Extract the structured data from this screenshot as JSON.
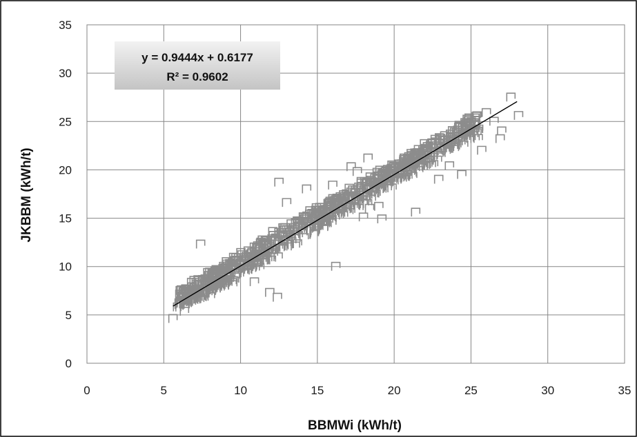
{
  "chart_data": {
    "type": "scatter",
    "xlabel": "BBMWi (kWh/t)",
    "ylabel": "JKBBM (kWh/t)",
    "xlim": [
      0,
      35
    ],
    "ylim": [
      0,
      35
    ],
    "xticks": [
      "0",
      "5",
      "10",
      "15",
      "20",
      "25",
      "30",
      "35"
    ],
    "yticks": [
      "0",
      "5",
      "10",
      "15",
      "20",
      "25",
      "30",
      "35"
    ],
    "grid": true,
    "marker": "open-square-diamond",
    "marker_color": "#8c8c8c",
    "trendline": {
      "slope": 0.9444,
      "intercept": 0.6177,
      "x_range": [
        5.6,
        28.0
      ],
      "color": "#000000"
    },
    "annotation": {
      "equation": "y = 0.9444x + 0.6177",
      "r_squared": "R² = 0.9602"
    },
    "series": [
      {
        "values_note_free": true,
        "x": [
          5.6,
          5.9,
          6.1,
          6.3,
          6.5,
          6.7,
          6.9,
          7.1,
          7.3,
          7.5,
          7.7,
          7.9,
          8.1,
          8.3,
          8.5,
          8.7,
          8.9,
          9.1,
          9.3,
          9.5,
          9.7,
          9.9,
          10.1,
          10.3,
          10.5,
          10.7,
          10.9,
          11.1,
          11.3,
          11.5,
          11.7,
          11.9,
          12.1,
          12.3,
          12.5,
          12.7,
          12.9,
          13.1,
          13.3,
          13.5,
          13.7,
          13.9,
          14.1,
          14.3,
          14.5,
          14.7,
          14.9,
          15.1,
          15.3,
          15.5,
          15.7,
          15.9,
          16.1,
          16.3,
          16.5,
          16.7,
          16.9,
          17.1,
          17.3,
          17.5,
          17.7,
          17.9,
          18.1,
          18.3,
          18.5,
          18.7,
          18.9,
          19.1,
          19.3,
          19.5,
          19.7,
          19.9,
          20.1,
          20.3,
          20.5,
          20.7,
          20.9,
          21.1,
          21.3,
          21.5,
          21.7,
          21.9,
          22.1,
          22.3,
          22.5,
          22.7,
          22.9,
          23.1,
          23.3,
          23.5,
          23.7,
          23.9,
          24.1,
          24.3,
          24.5,
          24.7,
          24.9,
          25.1,
          25.3,
          25.5,
          26.0,
          26.5,
          27.0,
          27.6,
          28.1,
          7.4,
          8.2,
          11.9,
          12.1,
          12.4,
          16.2,
          17.6,
          18.0,
          18.4,
          19.2,
          21.4,
          22.9,
          23.6,
          24.4,
          25.7,
          26.9,
          14.3,
          16.0,
          17.2,
          18.3,
          19.0,
          13.0,
          12.5,
          10.9,
          9.6,
          8.7
        ],
        "y": [
          4.6,
          5.8,
          6.4,
          6.1,
          7.2,
          6.8,
          7.6,
          7.2,
          8.1,
          7.6,
          8.7,
          8.0,
          9.0,
          8.5,
          9.6,
          8.9,
          10.0,
          9.4,
          10.3,
          9.8,
          10.9,
          10.2,
          11.2,
          10.7,
          11.6,
          11.0,
          12.0,
          11.5,
          12.4,
          11.9,
          12.7,
          12.3,
          13.2,
          12.6,
          13.5,
          13.1,
          14.0,
          13.3,
          14.4,
          13.8,
          14.7,
          14.2,
          15.1,
          14.5,
          15.4,
          14.9,
          15.8,
          15.3,
          16.1,
          15.6,
          16.5,
          15.9,
          16.8,
          16.2,
          17.2,
          16.6,
          17.5,
          17.0,
          17.9,
          17.3,
          18.2,
          17.6,
          18.6,
          18.0,
          18.9,
          18.3,
          19.3,
          18.7,
          19.6,
          19.0,
          19.9,
          19.4,
          20.3,
          19.8,
          20.6,
          20.1,
          21.0,
          20.4,
          21.3,
          20.8,
          21.6,
          21.1,
          22.0,
          21.5,
          22.3,
          21.8,
          22.7,
          22.2,
          23.0,
          22.5,
          23.4,
          22.9,
          23.7,
          23.1,
          24.1,
          23.5,
          24.3,
          23.9,
          24.6,
          24.2,
          25.9,
          25.0,
          24.0,
          27.5,
          25.6,
          12.3,
          7.5,
          7.3,
          13.6,
          6.8,
          10.0,
          19.8,
          15.1,
          16.0,
          14.9,
          15.6,
          19.0,
          20.4,
          19.5,
          22.0,
          23.2,
          18.0,
          18.4,
          20.3,
          21.2,
          16.2,
          16.6,
          18.7,
          8.4,
          9.9,
          9.6
        ]
      }
    ]
  }
}
